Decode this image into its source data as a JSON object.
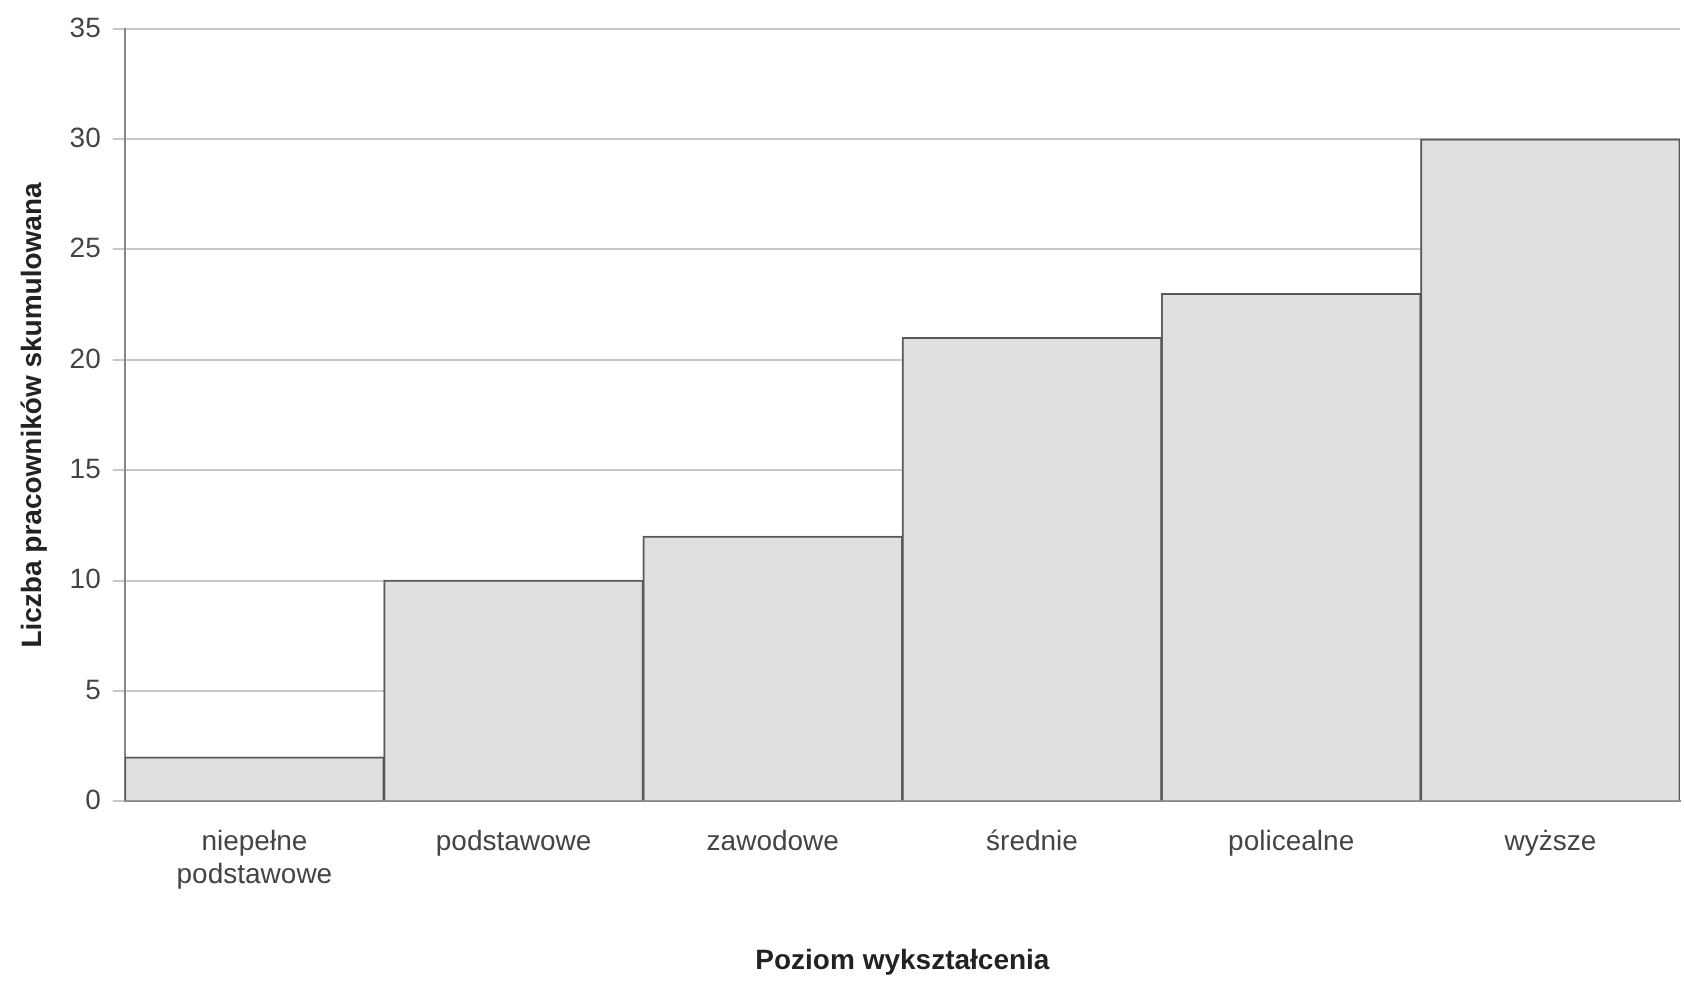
{
  "chart_data": {
    "type": "bar",
    "xlabel": "Poziom wykształcenia",
    "ylabel": "Liczba pracowników skumulowana",
    "categories": [
      "niepełne podstawowe",
      "podstawowe",
      "zawodowe",
      "średnie",
      "policealne",
      "wyższe"
    ],
    "values": [
      2,
      10,
      12,
      21,
      23,
      30
    ],
    "color": "#e0e0e0",
    "ylim": [
      0,
      35
    ],
    "yticks": [
      0,
      5,
      10,
      15,
      20,
      25,
      30,
      35
    ],
    "grid": "y",
    "legend": false
  }
}
